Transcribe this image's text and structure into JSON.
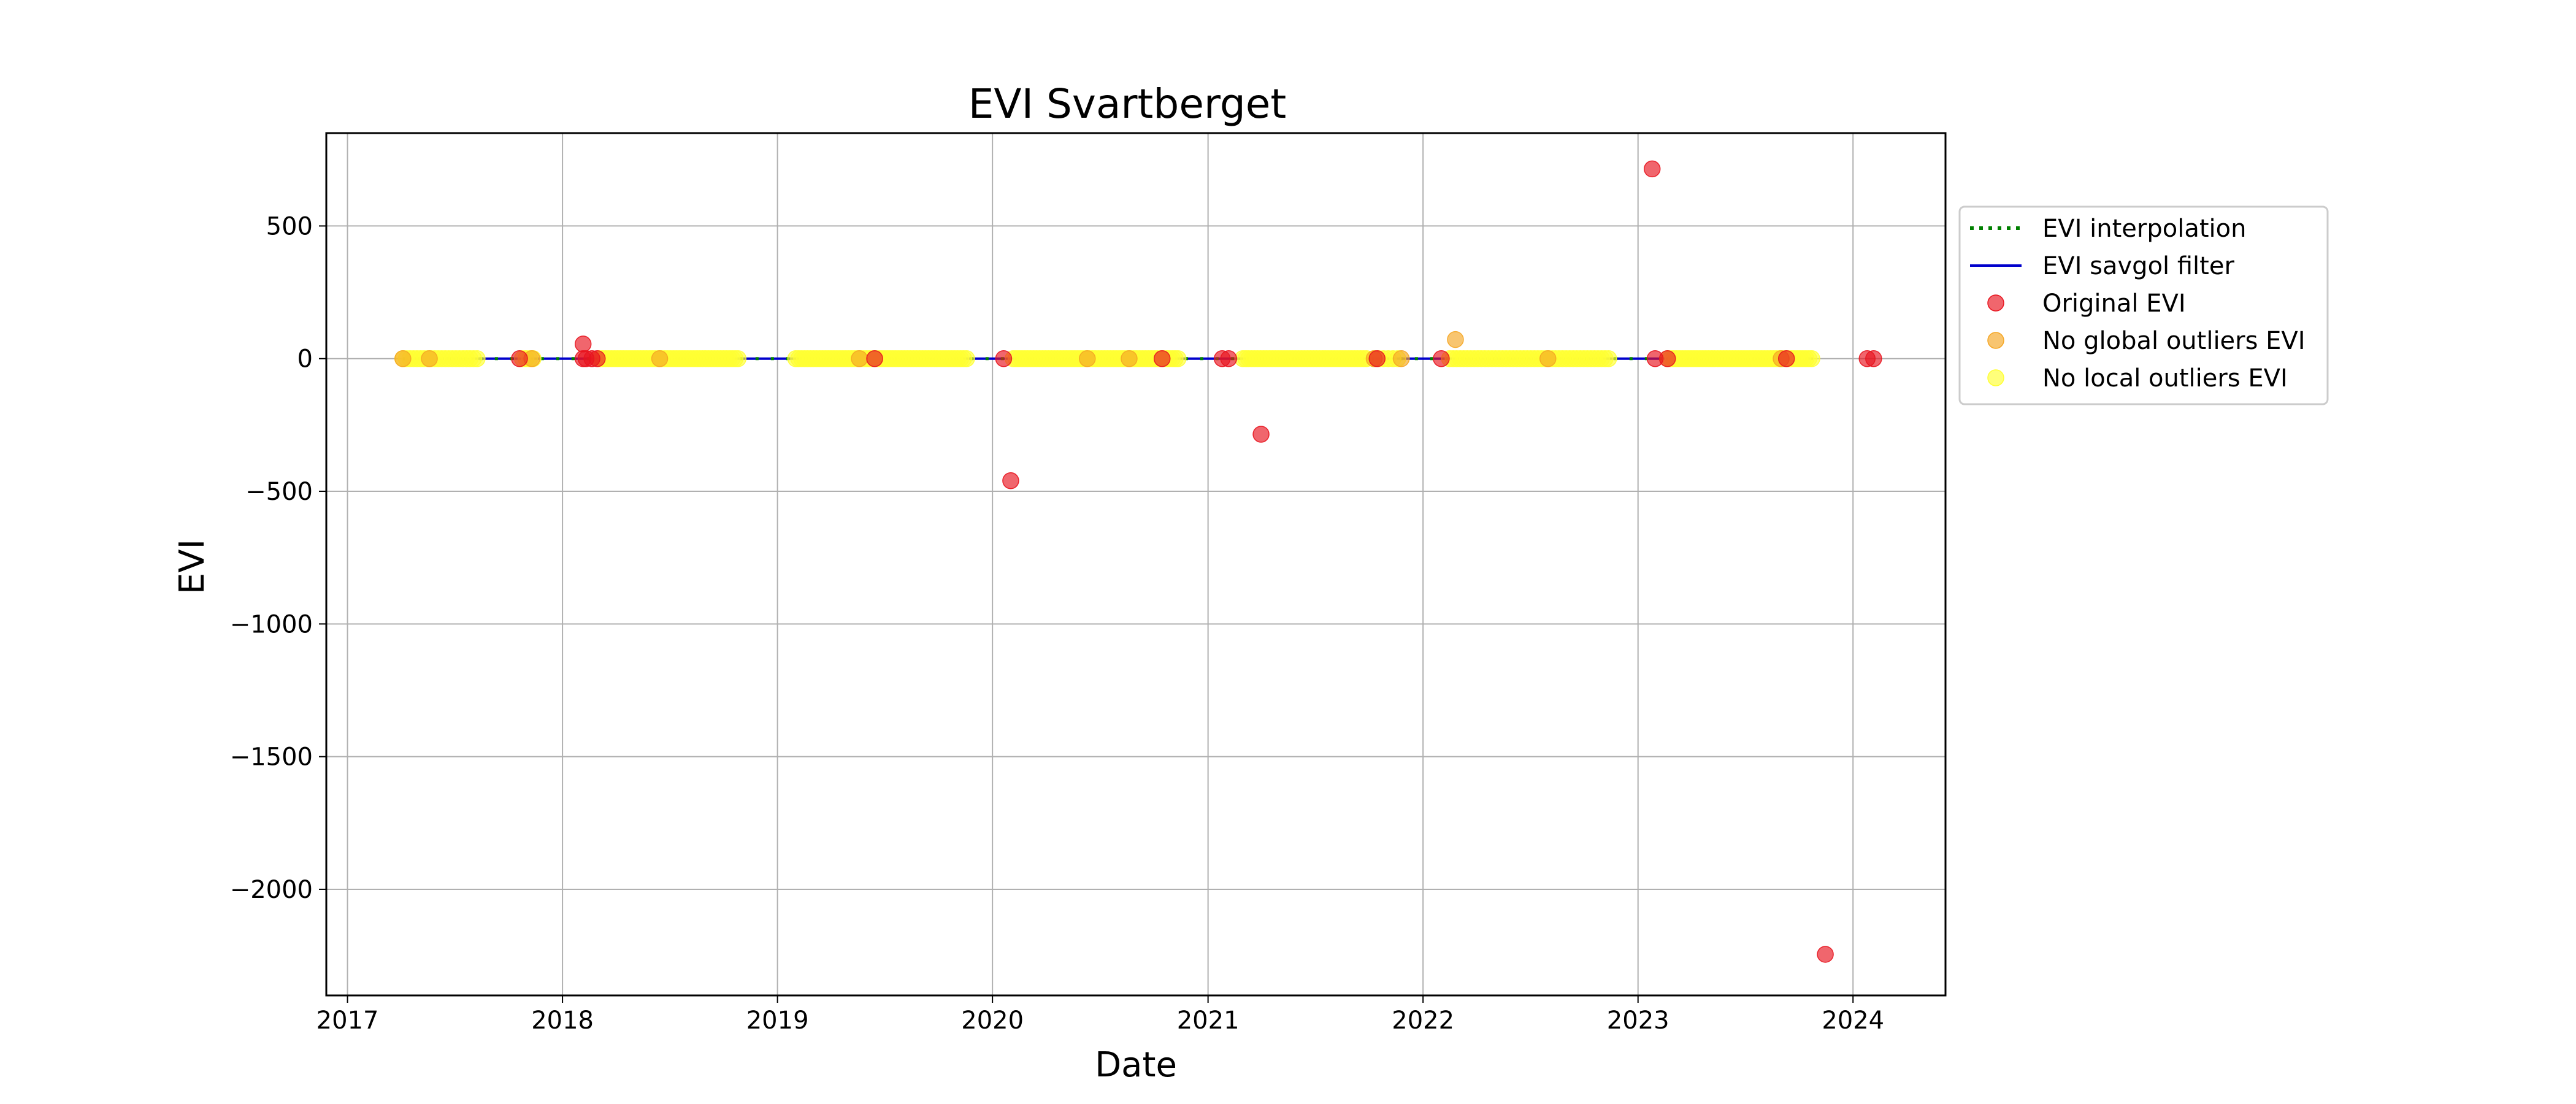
{
  "chart_data": {
    "type": "scatter",
    "title": "EVI Svartberget",
    "xlabel": "Date",
    "ylabel": "EVI",
    "xlim": [
      "2016-11-26",
      "2024-06-06"
    ],
    "ylim": [
      -2400,
      850
    ],
    "x_ticks": [
      "2017-01-01",
      "2018-01-01",
      "2019-01-01",
      "2020-01-01",
      "2021-01-01",
      "2022-01-01",
      "2023-01-01",
      "2024-01-01"
    ],
    "x_tick_labels": [
      "2017",
      "2018",
      "2019",
      "2020",
      "2021",
      "2022",
      "2023",
      "2024"
    ],
    "y_ticks": [
      500,
      0,
      -500,
      -1000,
      -1500,
      -2000
    ],
    "y_tick_labels": [
      "500",
      "0",
      "−500",
      "−1000",
      "−1500",
      "−2000"
    ],
    "grid": true,
    "legend_position": "outside-right",
    "colors": {
      "interpolation": "#008000",
      "savgol": "#0000cc",
      "original": "#e8141e",
      "no_global": "#f5a623",
      "no_local": "#ffff33"
    },
    "legend": [
      {
        "label": "EVI interpolation",
        "kind": "dotted-line",
        "color": "#008000"
      },
      {
        "label": "EVI savgol filter",
        "kind": "line",
        "color": "#0000cc"
      },
      {
        "label": "Original EVI",
        "kind": "marker",
        "color": "#e8141e"
      },
      {
        "label": "No global outliers EVI",
        "kind": "marker",
        "color": "#f5a623"
      },
      {
        "label": "No local outliers EVI",
        "kind": "marker",
        "color": "#ffff33"
      }
    ],
    "line_range": {
      "x": [
        "2017-04-05",
        "2023-10-25"
      ],
      "y": 0
    },
    "series": [
      {
        "name": "Original EVI",
        "color": "#e8141e",
        "points": [
          {
            "x": "2017-10-20",
            "y": 0
          },
          {
            "x": "2018-02-05",
            "y": 55
          },
          {
            "x": "2018-02-05",
            "y": 0
          },
          {
            "x": "2018-02-10",
            "y": 0
          },
          {
            "x": "2018-02-20",
            "y": 0
          },
          {
            "x": "2018-03-01",
            "y": 0
          },
          {
            "x": "2019-06-15",
            "y": 0
          },
          {
            "x": "2020-01-20",
            "y": 0
          },
          {
            "x": "2020-02-01",
            "y": -460
          },
          {
            "x": "2020-10-15",
            "y": 0
          },
          {
            "x": "2021-01-25",
            "y": 0
          },
          {
            "x": "2021-02-05",
            "y": 0
          },
          {
            "x": "2021-04-01",
            "y": -285
          },
          {
            "x": "2021-10-15",
            "y": 0
          },
          {
            "x": "2022-02-01",
            "y": 0
          },
          {
            "x": "2023-01-25",
            "y": 715
          },
          {
            "x": "2023-01-30",
            "y": 0
          },
          {
            "x": "2023-02-20",
            "y": 0
          },
          {
            "x": "2023-09-10",
            "y": 0
          },
          {
            "x": "2023-11-15",
            "y": -2245
          },
          {
            "x": "2024-01-25",
            "y": 0
          },
          {
            "x": "2024-02-05",
            "y": 0
          }
        ]
      },
      {
        "name": "No global outliers EVI",
        "color": "#f5a623",
        "points": [
          {
            "x": "2017-04-05",
            "y": 0
          },
          {
            "x": "2017-05-20",
            "y": 0
          },
          {
            "x": "2017-11-10",
            "y": 0
          },
          {
            "x": "2018-06-15",
            "y": 0
          },
          {
            "x": "2019-05-20",
            "y": 0
          },
          {
            "x": "2020-06-10",
            "y": 0
          },
          {
            "x": "2020-08-20",
            "y": 0
          },
          {
            "x": "2021-10-10",
            "y": 0
          },
          {
            "x": "2021-11-25",
            "y": 0
          },
          {
            "x": "2022-02-25",
            "y": 72
          },
          {
            "x": "2022-08-01",
            "y": 0
          },
          {
            "x": "2023-09-01",
            "y": 0
          }
        ]
      },
      {
        "name": "No local outliers EVI",
        "color": "#ffff33",
        "ranges": [
          {
            "from": "2017-04-05",
            "to": "2017-08-10",
            "step_days": 6,
            "y": 0
          },
          {
            "from": "2017-10-25",
            "to": "2017-11-15",
            "step_days": 6,
            "y": 0
          },
          {
            "from": "2018-03-05",
            "to": "2018-10-30",
            "step_days": 5,
            "y": 0
          },
          {
            "from": "2019-02-01",
            "to": "2019-11-20",
            "step_days": 5,
            "y": 0
          },
          {
            "from": "2020-02-05",
            "to": "2020-11-15",
            "step_days": 5,
            "y": 0
          },
          {
            "from": "2021-03-01",
            "to": "2021-09-30",
            "step_days": 5,
            "y": 0
          },
          {
            "from": "2021-10-10",
            "to": "2021-11-25",
            "step_days": 8,
            "y": 0
          },
          {
            "from": "2022-02-15",
            "to": "2022-11-15",
            "step_days": 6,
            "y": 0
          },
          {
            "from": "2023-02-20",
            "to": "2023-10-25",
            "step_days": 5,
            "y": 0
          }
        ]
      }
    ]
  }
}
